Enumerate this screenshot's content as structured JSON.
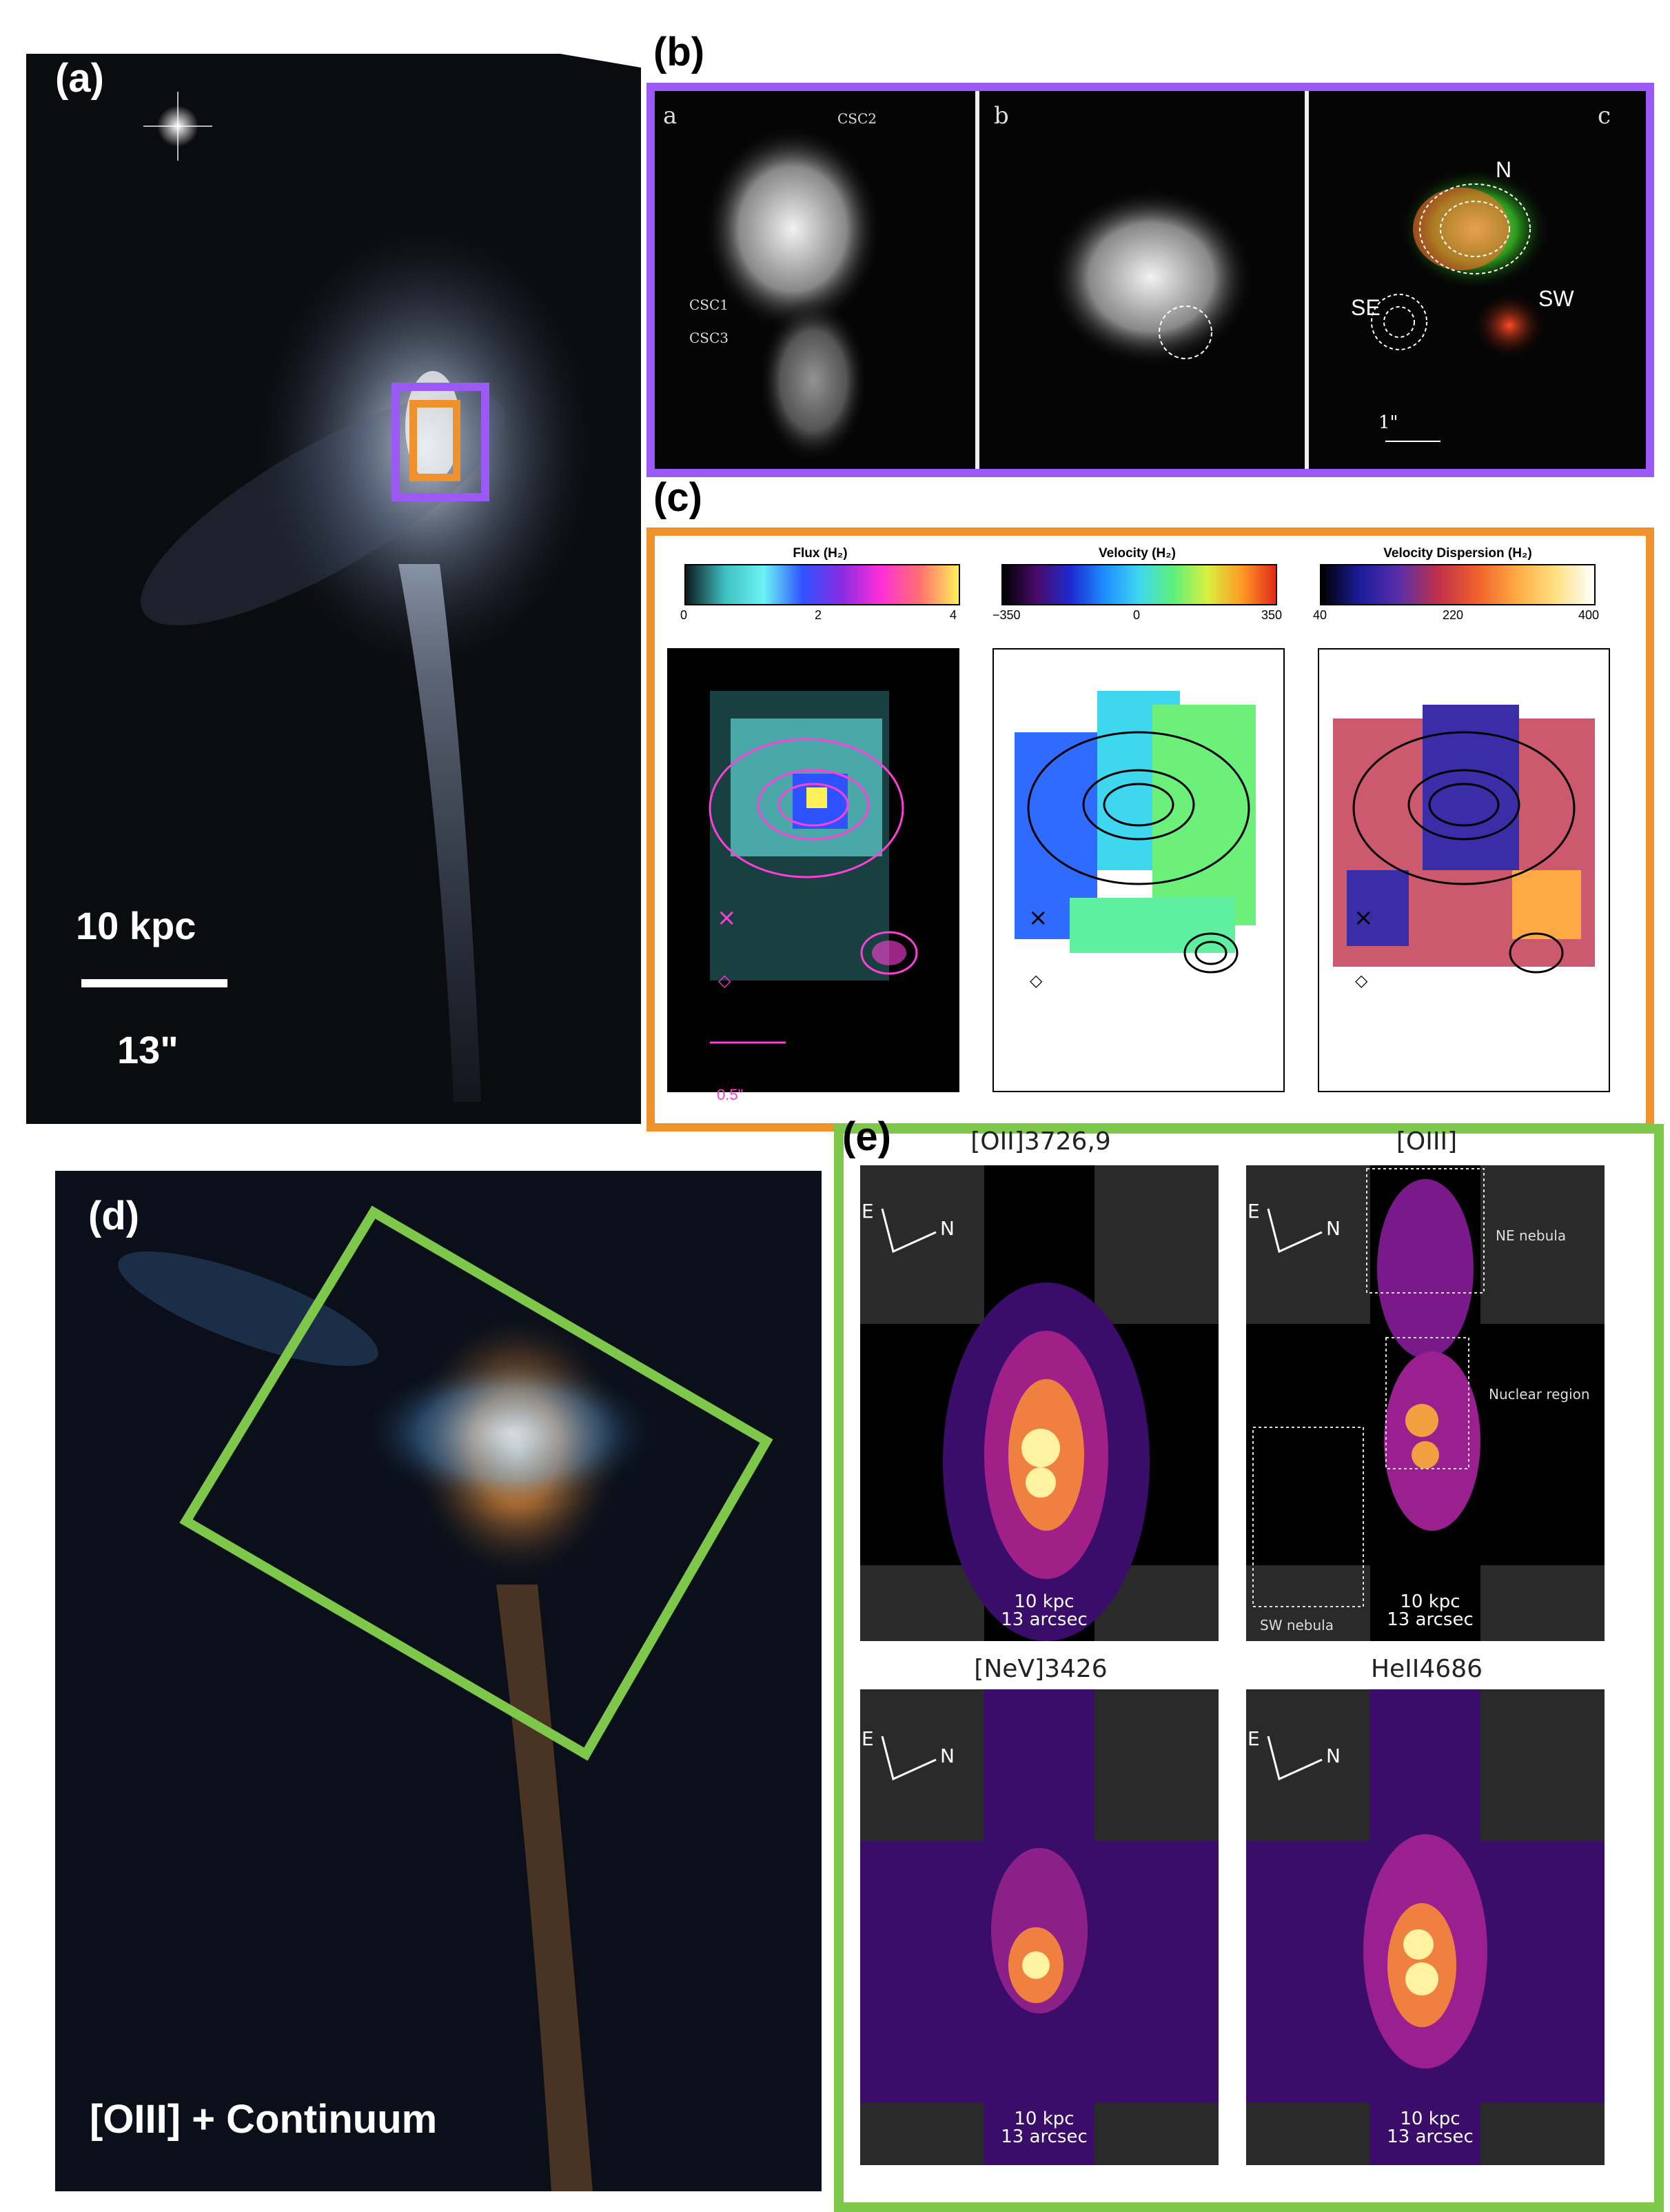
{
  "panels": {
    "a": {
      "letter": "(a)",
      "scale_top": "10 kpc",
      "scale_bottom": "13\""
    },
    "b": {
      "letter": "(b)",
      "sub": [
        "a",
        "b",
        "c"
      ],
      "labels_a": [
        "CSC2",
        "CSC1",
        "CSC3"
      ],
      "labels_c": [
        "N",
        "SE",
        "SW"
      ],
      "scale": "1\""
    },
    "c": {
      "letter": "(c)",
      "maps": [
        {
          "title": "Flux (H₂)",
          "ticks": [
            "0",
            "2",
            "4"
          ]
        },
        {
          "title": "Velocity (H₂)",
          "ticks": [
            "−350",
            "0",
            "350"
          ]
        },
        {
          "title": "Velocity Dispersion (H₂)",
          "ticks": [
            "40",
            "220",
            "400"
          ]
        }
      ],
      "scale": "0.5\""
    },
    "d": {
      "letter": "(d)",
      "caption": "[OIII] + Continuum"
    },
    "e": {
      "letter": "(e)",
      "maps": [
        {
          "title": "[OII]3726,9"
        },
        {
          "title": "[OIII]"
        },
        {
          "title": "[NeV]3426"
        },
        {
          "title": "HeII4686"
        }
      ],
      "compass_e": "E",
      "compass_n": "N",
      "scale_top": "10 kpc",
      "scale_bottom": "13 arcsec",
      "regions": [
        "NE nebula",
        "Nuclear region",
        "SW nebula"
      ]
    }
  },
  "colors": {
    "purple_box": "#9b59f5",
    "orange_box": "#f0922b",
    "green_box": "#7dc84a"
  }
}
